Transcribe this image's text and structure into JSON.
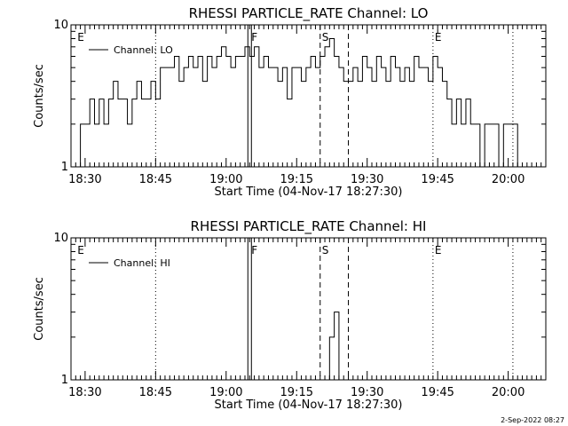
{
  "footer": {
    "timestamp": "2-Sep-2022 08:27"
  },
  "chart_data": [
    {
      "type": "line",
      "title": "RHESSI PARTICLE_RATE Channel: LO",
      "xlabel": "Start Time (04-Nov-17 18:27:30)",
      "ylabel": "Counts/sec",
      "yscale": "log",
      "xlim": [
        "18:27",
        "20:08"
      ],
      "ylim": [
        1,
        10
      ],
      "x_ticks": [
        "18:30",
        "18:45",
        "19:00",
        "19:15",
        "19:30",
        "19:45",
        "20:00"
      ],
      "y_ticks": [
        "1",
        "10"
      ],
      "legend": {
        "entries": [
          "Channel: LO"
        ],
        "placement": "top-left"
      },
      "grid": false,
      "markers": [
        {
          "label": "E",
          "time": "18:28",
          "style": "none"
        },
        {
          "label": "",
          "time": "18:45",
          "style": "dotted"
        },
        {
          "label": "F",
          "time": "19:05",
          "style": "double-solid"
        },
        {
          "label": "S",
          "time": "19:20",
          "style": "dashed"
        },
        {
          "label": "",
          "time": "19:26",
          "style": "dashed"
        },
        {
          "label": "E",
          "time": "19:44",
          "style": "dotted"
        },
        {
          "label": "",
          "time": "20:01",
          "style": "dotted"
        }
      ],
      "series": [
        {
          "name": "Channel: LO",
          "x": [
            "18:28",
            "18:29",
            "18:30",
            "18:31",
            "18:32",
            "18:33",
            "18:34",
            "18:35",
            "18:36",
            "18:37",
            "18:38",
            "18:39",
            "18:40",
            "18:41",
            "18:42",
            "18:43",
            "18:44",
            "18:45",
            "18:46",
            "18:47",
            "18:48",
            "18:49",
            "18:50",
            "18:51",
            "18:52",
            "18:53",
            "18:54",
            "18:55",
            "18:56",
            "18:57",
            "18:58",
            "18:59",
            "19:00",
            "19:01",
            "19:02",
            "19:03",
            "19:04",
            "19:05",
            "19:06",
            "19:07",
            "19:08",
            "19:09",
            "19:10",
            "19:11",
            "19:12",
            "19:13",
            "19:14",
            "19:15",
            "19:16",
            "19:17",
            "19:18",
            "19:19",
            "19:20",
            "19:21",
            "19:22",
            "19:23",
            "19:24",
            "19:25",
            "19:26",
            "19:27",
            "19:28",
            "19:29",
            "19:30",
            "19:31",
            "19:32",
            "19:33",
            "19:34",
            "19:35",
            "19:36",
            "19:37",
            "19:38",
            "19:39",
            "19:40",
            "19:41",
            "19:42",
            "19:43",
            "19:44",
            "19:45",
            "19:46",
            "19:47",
            "19:48",
            "19:49",
            "19:50",
            "19:51",
            "19:52",
            "19:53",
            "19:54",
            "19:55",
            "19:56",
            "19:57",
            "19:58",
            "19:59",
            "20:00",
            "20:01",
            "20:02"
          ],
          "values": [
            1,
            2,
            2,
            3,
            2,
            3,
            2,
            3,
            4,
            3,
            3,
            2,
            3,
            4,
            3,
            3,
            4,
            3,
            5,
            5,
            5,
            6,
            4,
            5,
            6,
            5,
            6,
            4,
            6,
            5,
            6,
            7,
            6,
            5,
            6,
            6,
            7,
            6,
            7,
            5,
            6,
            5,
            5,
            4,
            5,
            3,
            5,
            5,
            4,
            5,
            6,
            5,
            6,
            7,
            8,
            6,
            5,
            4,
            4,
            5,
            4,
            6,
            5,
            4,
            6,
            5,
            4,
            6,
            5,
            4,
            5,
            4,
            6,
            5,
            5,
            4,
            6,
            5,
            4,
            3,
            2,
            3,
            2,
            3,
            2,
            2,
            1,
            2,
            2,
            2,
            1,
            2,
            2,
            2,
            1
          ]
        }
      ]
    },
    {
      "type": "line",
      "title": "RHESSI PARTICLE_RATE Channel: HI",
      "xlabel": "Start Time (04-Nov-17 18:27:30)",
      "ylabel": "Counts/sec",
      "yscale": "log",
      "xlim": [
        "18:27",
        "20:08"
      ],
      "ylim": [
        1,
        10
      ],
      "x_ticks": [
        "18:30",
        "18:45",
        "19:00",
        "19:15",
        "19:30",
        "19:45",
        "20:00"
      ],
      "y_ticks": [
        "1",
        "10"
      ],
      "legend": {
        "entries": [
          "Channel: HI"
        ],
        "placement": "top-left"
      },
      "grid": false,
      "markers": [
        {
          "label": "E",
          "time": "18:28",
          "style": "none"
        },
        {
          "label": "",
          "time": "18:45",
          "style": "dotted"
        },
        {
          "label": "F",
          "time": "19:05",
          "style": "double-solid"
        },
        {
          "label": "S",
          "time": "19:20",
          "style": "dashed"
        },
        {
          "label": "",
          "time": "19:26",
          "style": "dashed"
        },
        {
          "label": "E",
          "time": "19:44",
          "style": "dotted"
        },
        {
          "label": "",
          "time": "20:01",
          "style": "dotted"
        }
      ],
      "series": [
        {
          "name": "Channel: HI",
          "x": [
            "19:21",
            "19:22",
            "19:23",
            "19:24"
          ],
          "values": [
            1,
            2,
            3,
            1
          ]
        }
      ]
    }
  ]
}
